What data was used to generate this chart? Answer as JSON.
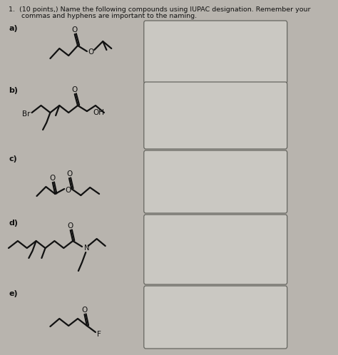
{
  "title_line1": "1.  (10 points,) Name the following compounds using IUPAC designation. Remember your",
  "title_line2": "      commas and hyphens are important to the naming.",
  "bg_color": "#b8b4ae",
  "box_fill": "#cac8c2",
  "box_edge": "#666660",
  "labels": [
    "a)",
    "b)",
    "c)",
    "d)",
    "e)"
  ],
  "figsize": [
    4.74,
    4.98
  ],
  "dpi": 100
}
